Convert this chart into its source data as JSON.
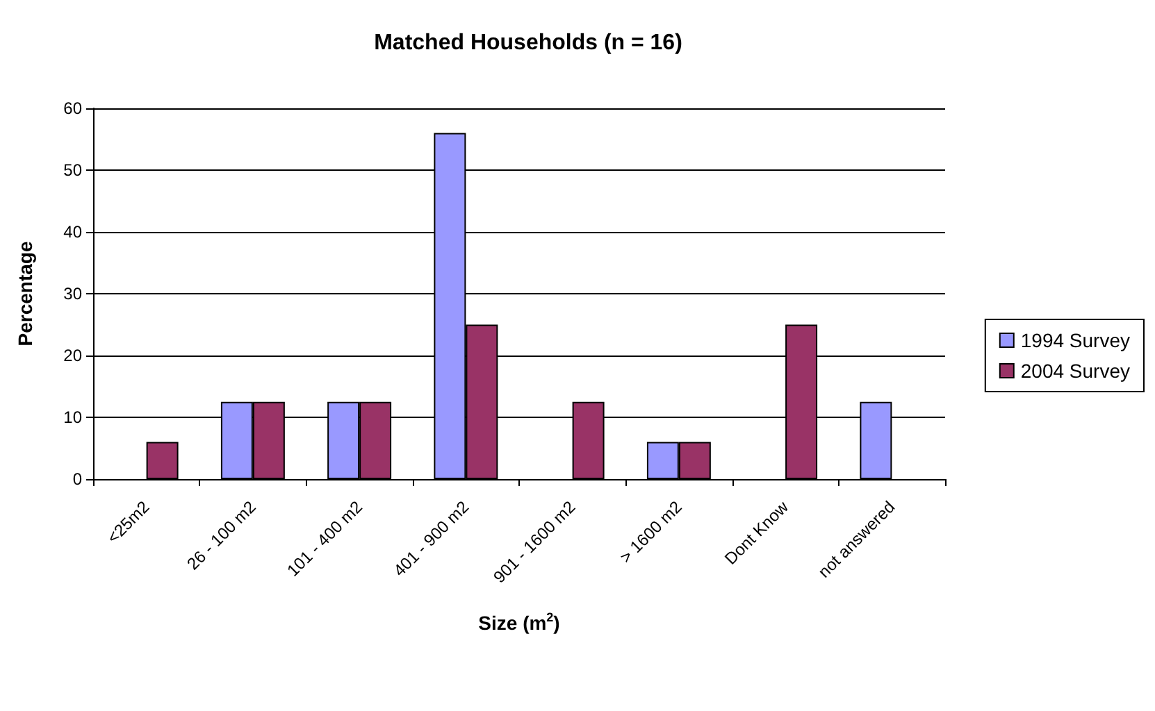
{
  "chart_data": {
    "type": "bar",
    "title": "Matched Households (n = 16)",
    "xlabel": "Size (m$^{2}$)",
    "ylabel": "Percentage",
    "categories": [
      "<25m2",
      "26 - 100 m2",
      "101 - 400 m2",
      "401 - 900 m2",
      "901 - 1600 m2",
      "> 1600 m2",
      "Dont Know",
      "not answered"
    ],
    "series": [
      {
        "name": "1994 Survey",
        "color": "#9999ff",
        "values": [
          null,
          12.5,
          12.5,
          56,
          null,
          6,
          null,
          12.5
        ]
      },
      {
        "name": "2004 Survey",
        "color": "#993366",
        "values": [
          6,
          12.5,
          12.5,
          25,
          12.5,
          6,
          25,
          null
        ]
      }
    ],
    "ylim": [
      0,
      60
    ],
    "yticks": [
      0,
      10,
      20,
      30,
      40,
      50,
      60
    ],
    "grid": "y",
    "legend": "right"
  }
}
